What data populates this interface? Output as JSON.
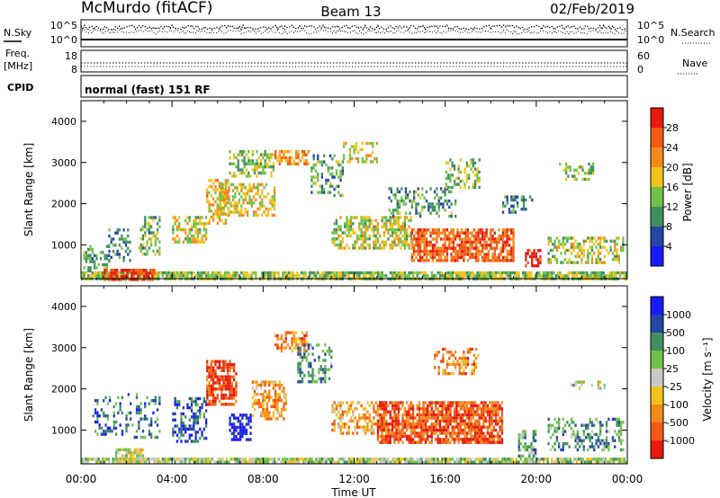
{
  "header": {
    "station": "McMurdo (fitACF)",
    "beam": "Beam 13",
    "date": "02/Feb/2019"
  },
  "top_panels": {
    "nsky_label": "N.Sky",
    "nsky_scale_top": "10^5",
    "nsky_scale_bottom": "10^0",
    "nsearch_label": "N.Search",
    "freq_label": "Freq.",
    "freq_unit": "[MHz]",
    "freq_scale_top": "18",
    "freq_scale_bottom": "8",
    "nave_label": "Nave",
    "nave_scale_top": "60",
    "nave_scale_bottom": "0",
    "cpid_label": "CPID",
    "cpid_value": "normal (fast) 151 RF"
  },
  "colors": {
    "power": [
      "#1a1aff",
      "#2646a6",
      "#3f8f5f",
      "#6fc24a",
      "#f2c21c",
      "#f28a1c",
      "#f25a14",
      "#e61a0f"
    ],
    "velocity": [
      "#e61a0f",
      "#f25a14",
      "#f28a1c",
      "#f2c21c",
      "#c8c8c8",
      "#6fc24a",
      "#3f8f5f",
      "#2646a6",
      "#1a1aff"
    ]
  },
  "chart_data": [
    {
      "type": "heatmap",
      "title": "",
      "xlabel": "",
      "ylabel": "Slant Range [km]",
      "xlim": [
        0,
        24
      ],
      "ylim": [
        180,
        4500
      ],
      "x_ticks": [
        "00:00",
        "04:00",
        "08:00",
        "12:00",
        "16:00",
        "20:00",
        "00:00"
      ],
      "y_ticks": [
        1000,
        2000,
        3000,
        4000
      ],
      "colorbar": {
        "label": "Power [dB]",
        "range": [
          0,
          32
        ],
        "ticks": [
          "4",
          "8",
          "12",
          "16",
          "20",
          "24",
          "28"
        ]
      },
      "echo_regions": [
        {
          "t": [
            0.0,
            24.0
          ],
          "range": [
            190,
            360
          ],
          "level": 0.45,
          "density": 0.85
        },
        {
          "t": [
            0.1,
            1.2
          ],
          "range": [
            400,
            1000
          ],
          "level": 0.35,
          "density": 0.5
        },
        {
          "t": [
            1.0,
            3.2
          ],
          "range": [
            190,
            420
          ],
          "level": 0.9,
          "density": 0.8
        },
        {
          "t": [
            1.2,
            2.2
          ],
          "range": [
            600,
            1400
          ],
          "level": 0.3,
          "density": 0.35
        },
        {
          "t": [
            2.5,
            3.5
          ],
          "range": [
            800,
            1700
          ],
          "level": 0.4,
          "density": 0.5
        },
        {
          "t": [
            4.0,
            5.5
          ],
          "range": [
            1100,
            1700
          ],
          "level": 0.5,
          "density": 0.55
        },
        {
          "t": [
            5.5,
            6.5
          ],
          "range": [
            1500,
            2600
          ],
          "level": 0.6,
          "density": 0.6
        },
        {
          "t": [
            6.0,
            8.5
          ],
          "range": [
            1700,
            2500
          ],
          "level": 0.55,
          "density": 0.55
        },
        {
          "t": [
            6.5,
            8.5
          ],
          "range": [
            2700,
            3300
          ],
          "level": 0.45,
          "density": 0.5
        },
        {
          "t": [
            8.5,
            10.0
          ],
          "range": [
            3000,
            3300
          ],
          "level": 0.7,
          "density": 0.6
        },
        {
          "t": [
            10.0,
            11.5
          ],
          "range": [
            2200,
            3200
          ],
          "level": 0.35,
          "density": 0.35
        },
        {
          "t": [
            11.0,
            14.5
          ],
          "range": [
            900,
            1700
          ],
          "level": 0.5,
          "density": 0.55
        },
        {
          "t": [
            11.5,
            13.0
          ],
          "range": [
            3000,
            3500
          ],
          "level": 0.55,
          "density": 0.45
        },
        {
          "t": [
            13.5,
            16.5
          ],
          "range": [
            1700,
            2400
          ],
          "level": 0.35,
          "density": 0.35
        },
        {
          "t": [
            14.5,
            19.0
          ],
          "range": [
            600,
            1400
          ],
          "level": 0.8,
          "density": 0.75
        },
        {
          "t": [
            16.0,
            17.5
          ],
          "range": [
            2400,
            3100
          ],
          "level": 0.45,
          "density": 0.45
        },
        {
          "t": [
            18.5,
            19.8
          ],
          "range": [
            1800,
            2200
          ],
          "level": 0.3,
          "density": 0.35
        },
        {
          "t": [
            19.5,
            20.2
          ],
          "range": [
            500,
            900
          ],
          "level": 0.9,
          "density": 0.7
        },
        {
          "t": [
            20.5,
            23.8
          ],
          "range": [
            600,
            1200
          ],
          "level": 0.5,
          "density": 0.5
        },
        {
          "t": [
            21.0,
            22.5
          ],
          "range": [
            2600,
            3000
          ],
          "level": 0.4,
          "density": 0.35
        }
      ]
    },
    {
      "type": "heatmap",
      "title": "",
      "xlabel": "Time UT",
      "ylabel": "Slant Range [km]",
      "xlim": [
        0,
        24
      ],
      "ylim": [
        180,
        4500
      ],
      "x_ticks": [
        "00:00",
        "04:00",
        "08:00",
        "12:00",
        "16:00",
        "20:00",
        "00:00"
      ],
      "y_ticks": [
        1000,
        2000,
        3000,
        4000
      ],
      "colorbar": {
        "label": "Velocity [m s⁻¹]",
        "range": [
          -1200,
          1200
        ],
        "ticks": [
          "1000",
          "500",
          "100",
          "25",
          "-25",
          "-100",
          "-500",
          "-1000"
        ]
      },
      "echo_regions": [
        {
          "t": [
            0.0,
            24.0
          ],
          "range": [
            190,
            330
          ],
          "level": 0.55,
          "density": 0.85
        },
        {
          "t": [
            1.5,
            2.7
          ],
          "range": [
            190,
            560
          ],
          "level": 0.5,
          "density": 0.8
        },
        {
          "t": [
            0.5,
            3.5
          ],
          "range": [
            800,
            1900
          ],
          "level": 0.78,
          "density": 0.3
        },
        {
          "t": [
            4.0,
            5.5
          ],
          "range": [
            700,
            1800
          ],
          "level": 0.82,
          "density": 0.45
        },
        {
          "t": [
            5.5,
            6.8
          ],
          "range": [
            1600,
            2700
          ],
          "level": 0.1,
          "density": 0.7
        },
        {
          "t": [
            6.5,
            7.5
          ],
          "range": [
            800,
            1400
          ],
          "level": 0.95,
          "density": 0.55
        },
        {
          "t": [
            7.5,
            9.0
          ],
          "range": [
            1300,
            2200
          ],
          "level": 0.3,
          "density": 0.55
        },
        {
          "t": [
            8.5,
            10.0
          ],
          "range": [
            2900,
            3400
          ],
          "level": 0.25,
          "density": 0.55
        },
        {
          "t": [
            9.5,
            11.0
          ],
          "range": [
            2200,
            3100
          ],
          "level": 0.72,
          "density": 0.35
        },
        {
          "t": [
            11.0,
            13.5
          ],
          "range": [
            900,
            1700
          ],
          "level": 0.3,
          "density": 0.5
        },
        {
          "t": [
            13.0,
            18.5
          ],
          "range": [
            700,
            1700
          ],
          "level": 0.15,
          "density": 0.78
        },
        {
          "t": [
            15.5,
            17.5
          ],
          "range": [
            2400,
            3000
          ],
          "level": 0.25,
          "density": 0.45
        },
        {
          "t": [
            19.2,
            20.0
          ],
          "range": [
            400,
            1000
          ],
          "level": 0.68,
          "density": 0.55
        },
        {
          "t": [
            20.5,
            23.8
          ],
          "range": [
            500,
            1300
          ],
          "level": 0.7,
          "density": 0.45
        },
        {
          "t": [
            21.5,
            23.0
          ],
          "range": [
            2000,
            2200
          ],
          "level": 0.5,
          "density": 0.4
        }
      ]
    }
  ]
}
